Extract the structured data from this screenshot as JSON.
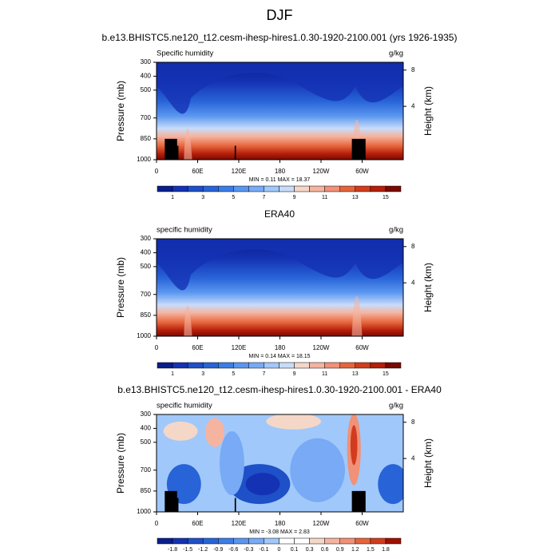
{
  "title": "DJF",
  "chart_data": [
    {
      "type": "contour",
      "title": "b.e13.BHISTC5.ne120_t12.cesm-ihesp-hires1.0.30-1920-2100.001 (yrs 1926-1935)",
      "left_string": "Specific humidity",
      "right_string": "g/kg",
      "ylabel": "Pressure (mb)",
      "y2label": "Height (km)",
      "xlim": [
        0,
        360
      ],
      "xticks": [
        0,
        {
          "value": 60,
          "label": "60E"
        },
        {
          "value": 120,
          "label": "120E"
        },
        180,
        {
          "value": 240,
          "label": "120W"
        },
        {
          "value": 300,
          "label": "60W"
        }
      ],
      "ylim": [
        1000,
        300
      ],
      "yticks": [
        300,
        400,
        500,
        700,
        850,
        1000
      ],
      "y2ticks": [
        4,
        8
      ],
      "annotation": "MIN =  0.11  MAX = 18.37",
      "colorbar": {
        "levels": [
          1,
          2,
          3,
          4,
          5,
          6,
          7,
          8,
          9,
          10,
          11,
          12,
          13,
          14,
          15
        ],
        "labels": [
          1,
          3,
          5,
          7,
          9,
          11,
          13,
          15
        ],
        "colors": [
          "#0a1e8c",
          "#1432b4",
          "#1e50c8",
          "#2864d7",
          "#3c7de6",
          "#5a96f0",
          "#78aaf5",
          "#a0c8fa",
          "#c8dcfa",
          "#f5d7c8",
          "#f5b4a0",
          "#f09178",
          "#e6643c",
          "#d23c1e",
          "#b41e0a",
          "#780a00"
        ]
      }
    },
    {
      "type": "contour",
      "title": "ERA40",
      "left_string": "specific humidity",
      "right_string": "g/kg",
      "ylabel": "Pressure (mb)",
      "y2label": "Height (km)",
      "xlim": [
        0,
        360
      ],
      "xticks": [
        0,
        {
          "value": 60,
          "label": "60E"
        },
        {
          "value": 120,
          "label": "120E"
        },
        180,
        {
          "value": 240,
          "label": "120W"
        },
        {
          "value": 300,
          "label": "60W"
        }
      ],
      "ylim": [
        1000,
        300
      ],
      "yticks": [
        300,
        400,
        500,
        700,
        850,
        1000
      ],
      "y2ticks": [
        4,
        8
      ],
      "annotation": "MIN =  0.14  MAX = 18.15",
      "colorbar": {
        "levels": [
          1,
          2,
          3,
          4,
          5,
          6,
          7,
          8,
          9,
          10,
          11,
          12,
          13,
          14,
          15
        ],
        "labels": [
          1,
          3,
          5,
          7,
          9,
          11,
          13,
          15
        ],
        "colors": [
          "#0a1e8c",
          "#1432b4",
          "#1e50c8",
          "#2864d7",
          "#3c7de6",
          "#5a96f0",
          "#78aaf5",
          "#a0c8fa",
          "#c8dcfa",
          "#f5d7c8",
          "#f5b4a0",
          "#f09178",
          "#e6643c",
          "#d23c1e",
          "#b41e0a",
          "#780a00"
        ]
      }
    },
    {
      "type": "contour-diff",
      "title": "b.e13.BHISTC5.ne120_t12.cesm-ihesp-hires1.0.30-1920-2100.001 - ERA40",
      "left_string": "specific humidity",
      "right_string": "g/kg",
      "ylabel": "Pressure (mb)",
      "y2label": "Height (km)",
      "xlim": [
        0,
        360
      ],
      "xticks": [
        0,
        {
          "value": 60,
          "label": "60E"
        },
        {
          "value": 120,
          "label": "120E"
        },
        180,
        {
          "value": 240,
          "label": "120W"
        },
        {
          "value": 300,
          "label": "60W"
        }
      ],
      "ylim": [
        1000,
        300
      ],
      "yticks": [
        300,
        400,
        500,
        700,
        850,
        1000
      ],
      "y2ticks": [
        4,
        8
      ],
      "annotation": "MIN = -3.08  MAX =  2.83",
      "colorbar": {
        "levels": [
          -1.8,
          -1.5,
          -1.2,
          -0.9,
          -0.6,
          -0.3,
          -0.1,
          0,
          0.1,
          0.3,
          0.6,
          0.9,
          1.2,
          1.5,
          1.8
        ],
        "labels": [
          -1.8,
          -1.5,
          -1.2,
          -0.9,
          -0.6,
          -0.3,
          -0.1,
          0,
          0.1,
          0.3,
          0.6,
          0.9,
          1.2,
          1.5,
          1.8
        ],
        "colors": [
          "#0a1e8c",
          "#1432b4",
          "#1e50c8",
          "#2864d7",
          "#3c7de6",
          "#5a96f0",
          "#78aaf5",
          "#a0c8fa",
          "#ffffff",
          "#ffffff",
          "#f5d7c8",
          "#f5b4a0",
          "#f09178",
          "#e6643c",
          "#d23c1e",
          "#a00f00"
        ]
      }
    }
  ]
}
